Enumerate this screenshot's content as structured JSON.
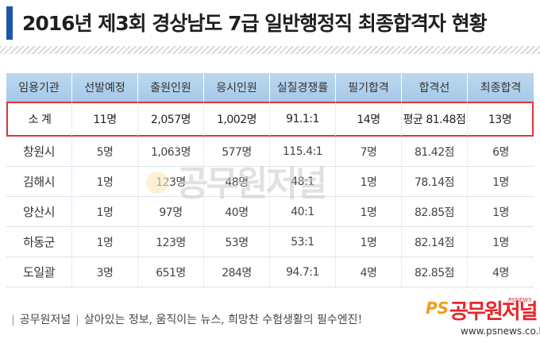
{
  "title": "2016년 제3회 경상남도 7급 일반행정직 최종합격자 현황",
  "table": {
    "headers": [
      "임용기관",
      "선발예정",
      "출원인원",
      "응시인원",
      "실질경쟁률",
      "필기합격",
      "합격선",
      "최종합격"
    ],
    "total": [
      "소 계",
      "11명",
      "2,057명",
      "1,002명",
      "91.1:1",
      "14명",
      "평균 81.48점",
      "13명"
    ],
    "rows": [
      [
        "창원시",
        "5명",
        "1,063명",
        "577명",
        "115.4:1",
        "7명",
        "81.42점",
        "6명"
      ],
      [
        "김해시",
        "1명",
        "123명",
        "48명",
        "48:1",
        "1명",
        "78.14점",
        "1명"
      ],
      [
        "양산시",
        "1명",
        "97명",
        "40명",
        "40:1",
        "1명",
        "82.85점",
        "1명"
      ],
      [
        "하동군",
        "1명",
        "123명",
        "53명",
        "53:1",
        "1명",
        "82.14점",
        "1명"
      ],
      [
        "도일괄",
        "3명",
        "651명",
        "284명",
        "94.7:1",
        "4명",
        "82.85점",
        "4명"
      ]
    ]
  },
  "watermark": "공무원저널",
  "footer": {
    "brand": "공무원저널",
    "slogan": "살아있는 정보, 움직이는 뉴스, 희망찬 수험생활의 필수엔진!"
  },
  "logo": {
    "mark": "PS",
    "name": "공무원저널",
    "tag": "PSNEWS",
    "url": "www.psnews.co.kr"
  },
  "colors": {
    "accent": "#1f57a8",
    "header_bg": "#a6c9e8",
    "highlight_border": "#e0343a",
    "logo_red": "#e8262b",
    "logo_orange": "#f59a1a"
  }
}
